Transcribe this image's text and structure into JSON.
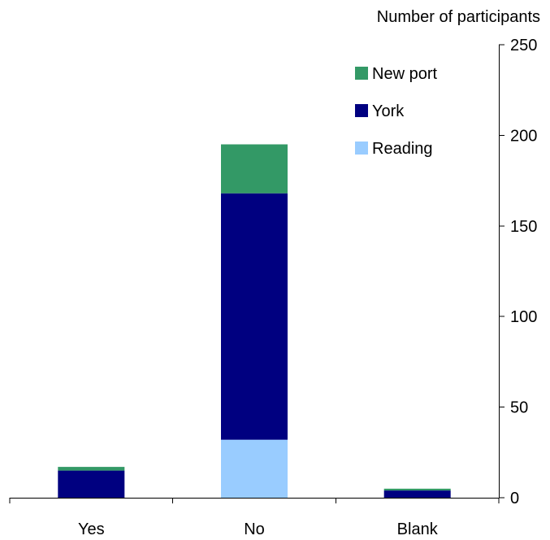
{
  "chart_data": {
    "type": "bar",
    "stacked": true,
    "categories": [
      "Yes",
      "No",
      "Blank"
    ],
    "series": [
      {
        "name": "Reading",
        "values": [
          0,
          32,
          0
        ],
        "color": "#99ccff"
      },
      {
        "name": "York",
        "values": [
          15,
          136,
          4
        ],
        "color": "#000080"
      },
      {
        "name": "New port",
        "values": [
          2,
          27,
          1
        ],
        "color": "#339966"
      }
    ],
    "ylabel": "Number of participants",
    "ylim": [
      0,
      250
    ],
    "yticks": [
      0,
      50,
      100,
      150,
      200,
      250
    ],
    "y_axis_side": "right",
    "grid": false,
    "legend": {
      "placement": "top-right",
      "order": [
        "New port",
        "York",
        "Reading"
      ]
    }
  }
}
